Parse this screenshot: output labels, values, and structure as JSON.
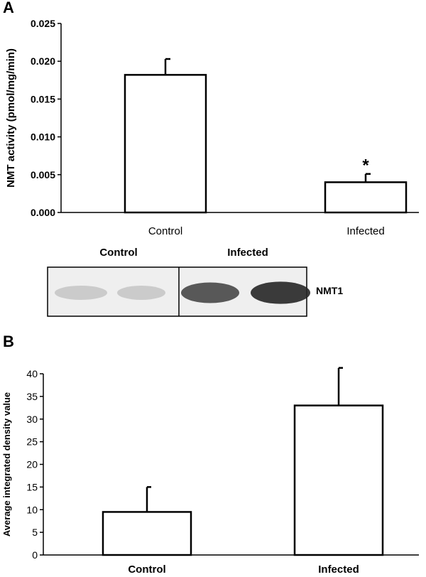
{
  "panel_labels": {
    "a": "A",
    "b": "B"
  },
  "blot": {
    "lane_labels": [
      "Control",
      "Infected"
    ],
    "band_label": "NMT1",
    "band_intensity": [
      0.22,
      0.22,
      0.72,
      0.85
    ]
  },
  "chart_data": [
    {
      "type": "bar",
      "panel": "A",
      "categories": [
        "Control",
        "Infected"
      ],
      "values": [
        0.0182,
        0.004
      ],
      "errors": [
        0.0021,
        0.0011
      ],
      "significance": [
        "",
        "*"
      ],
      "title": "",
      "xlabel": "",
      "ylabel": "NMT activity (pmol/mg/min)",
      "ylim": [
        0,
        0.025
      ],
      "yticks": [
        "0.000",
        "0.005",
        "0.010",
        "0.015",
        "0.020",
        "0.025"
      ],
      "grid": false,
      "legend": "none"
    },
    {
      "type": "bar",
      "panel": "B",
      "categories": [
        "Control",
        "Infected"
      ],
      "values": [
        9.5,
        33.0
      ],
      "errors": [
        5.5,
        8.3
      ],
      "title": "",
      "xlabel": "",
      "ylabel": "Average integrated density value",
      "ylim": [
        0,
        40
      ],
      "yticks": [
        "0",
        "5",
        "10",
        "15",
        "20",
        "25",
        "30",
        "35",
        "40"
      ],
      "grid": false,
      "legend": "none"
    }
  ]
}
